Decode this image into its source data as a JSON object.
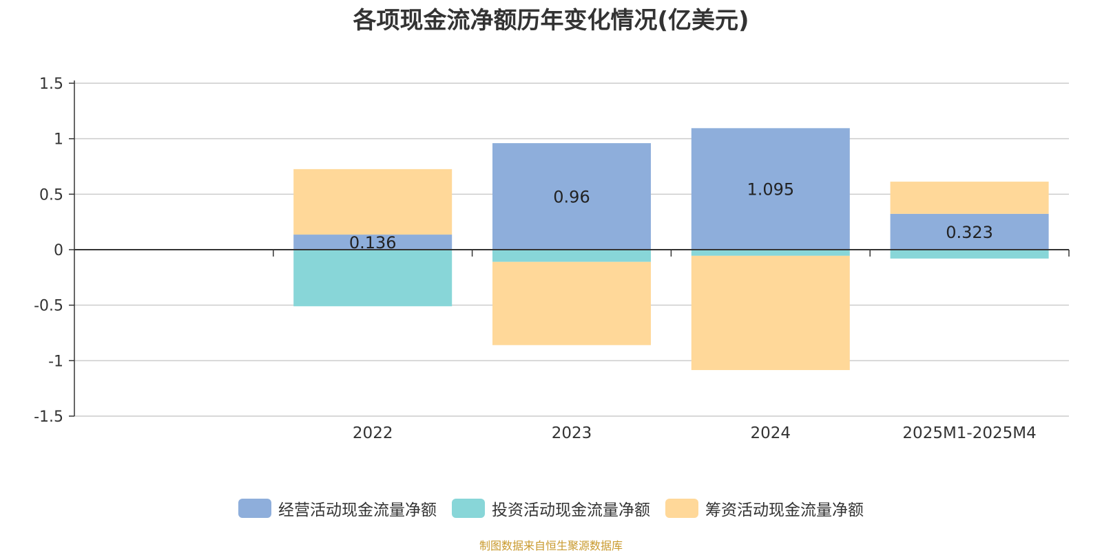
{
  "chart_data": {
    "type": "bar",
    "stacked": true,
    "title": "各项现金流净额历年变化情况(亿美元)",
    "categories": [
      "2022",
      "2023",
      "2024",
      "2025M1-2025M4"
    ],
    "ylim": [
      -1.5,
      1.5
    ],
    "yticks": [
      "1.5",
      "1",
      "0.5",
      "0",
      "-0.5",
      "-1",
      "-1.5"
    ],
    "grid": true,
    "legend_position": "bottom",
    "series": [
      {
        "name": "经营活动现金流量净额",
        "color": "#8eaedb",
        "values": [
          0.136,
          0.96,
          1.095,
          0.323
        ],
        "labels": [
          "0.136",
          "0.96",
          "1.095",
          "0.323"
        ]
      },
      {
        "name": "投资活动现金流量净额",
        "color": "#88d6d8",
        "values": [
          -0.51,
          -0.11,
          -0.055,
          -0.08
        ]
      },
      {
        "name": "筹资活动现金流量净额",
        "color": "#ffd899",
        "values": [
          0.59,
          -0.75,
          -1.03,
          0.29
        ]
      }
    ]
  },
  "source_note": "制图数据来自恒生聚源数据库"
}
